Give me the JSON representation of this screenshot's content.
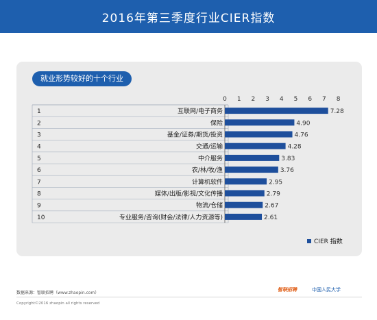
{
  "header": {
    "title": "2016年第三季度行业CIER指数"
  },
  "panel": {
    "subtitle": "就业形势较好的十个行业"
  },
  "colors": {
    "header_bg": "#1e5fae",
    "bar": "#1e4f9c",
    "panel_bg": "#ebebeb"
  },
  "chart_data": {
    "type": "bar",
    "orientation": "horizontal",
    "categories": [
      "互联网/电子商务",
      "保险",
      "基金/证券/期货/投资",
      "交通/运输",
      "中介服务",
      "农/林/牧/渔",
      "计算机软件",
      "媒体/出版/影视/文化传播",
      "物流/仓储",
      "专业服务/咨询(财会/法律/人力资源等)"
    ],
    "ranks": [
      "1",
      "2",
      "3",
      "4",
      "5",
      "6",
      "7",
      "8",
      "9",
      "10"
    ],
    "values": [
      7.28,
      4.9,
      4.76,
      4.28,
      3.83,
      3.76,
      2.95,
      2.79,
      2.67,
      2.61
    ],
    "value_labels": [
      "7.28",
      "4.90",
      "4.76",
      "4.28",
      "3.83",
      "3.76",
      "2.95",
      "2.79",
      "2.67",
      "2.61"
    ],
    "xlim": [
      0,
      8
    ],
    "ticks": [
      "0",
      "1",
      "2",
      "3",
      "4",
      "5",
      "6",
      "7",
      "8"
    ],
    "tick_positions": [
      0,
      1,
      2,
      3,
      4,
      5,
      6,
      7,
      8
    ],
    "legend": {
      "label": "CIER 指数",
      "position": "bottom-right"
    }
  },
  "footer": {
    "source": "数据来源：智联招聘（www.zhaopin.com）",
    "copyright": "Copyright©2016 zhaopin all rights reserved",
    "brand_left": "智联招聘",
    "brand_right": "中国人民大学"
  }
}
